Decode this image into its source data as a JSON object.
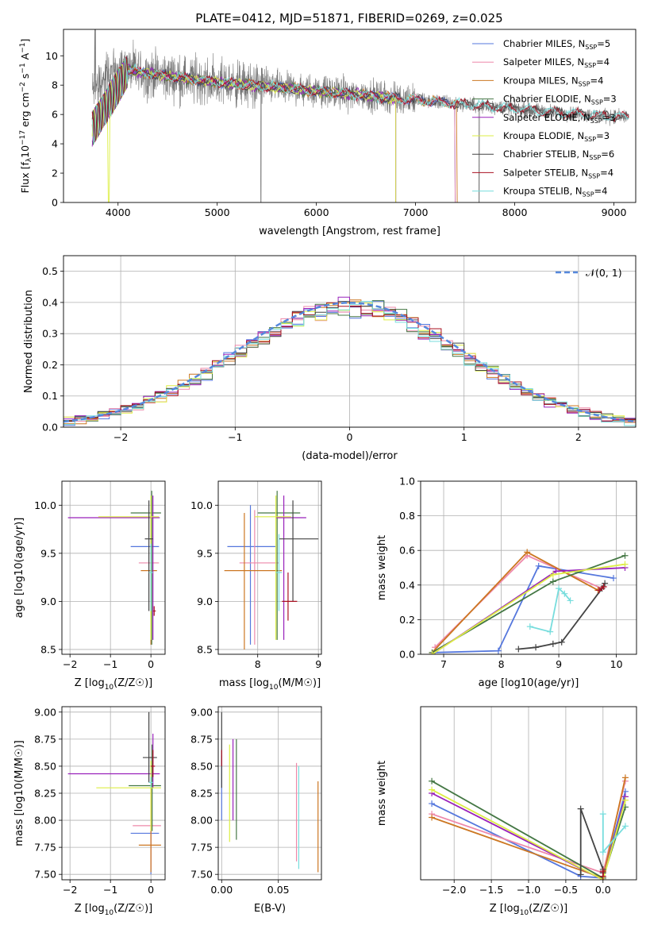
{
  "figure_title": "PLATE=0412, MJD=51871, FIBERID=0269, z=0.025",
  "colors": {
    "chabrier_miles": "#5577dd",
    "salpeter_miles": "#ee88aa",
    "kroupa_miles": "#cc7722",
    "chabrier_elodie": "#447744",
    "salpeter_elodie": "#9922bb",
    "kroupa_elodie": "#ddee44",
    "chabrier_stelib": "#444444",
    "salpeter_stelib": "#aa1122",
    "kroupa_stelib": "#77dddd",
    "data_spectrum": "#777777",
    "normal_curve": "#5588dd"
  },
  "chart_data": [
    {
      "id": "spectrum",
      "type": "line",
      "xlabel": "wavelength [Angstrom, rest frame]",
      "ylabel": "Flux [f_λ 10^-17 erg cm^-2 s^-1 A^-1]",
      "xlim": [
        3450,
        9220
      ],
      "ylim": [
        0,
        11.8
      ],
      "xticks": [
        4000,
        5000,
        6000,
        7000,
        8000,
        9000
      ],
      "yticks": [
        0,
        2,
        4,
        6,
        8,
        10
      ],
      "legend_position": "top-right",
      "legend": [
        {
          "main": "Chabrier MILES, N",
          "sub": "SSP",
          "tail": "=5",
          "color_key": "chabrier_miles"
        },
        {
          "main": "Salpeter MILES, N",
          "sub": "SSP",
          "tail": "=4",
          "color_key": "salpeter_miles"
        },
        {
          "main": "Kroupa MILES, N",
          "sub": "SSP",
          "tail": "=4",
          "color_key": "kroupa_miles"
        },
        {
          "main": "Chabrier ELODIE, N",
          "sub": "SSP",
          "tail": "=3",
          "color_key": "chabrier_elodie"
        },
        {
          "main": "Salpeter ELODIE, N",
          "sub": "SSP",
          "tail": "=3",
          "color_key": "salpeter_elodie"
        },
        {
          "main": "Kroupa ELODIE, N",
          "sub": "SSP",
          "tail": "=3",
          "color_key": "kroupa_elodie"
        },
        {
          "main": "Chabrier STELIB, N",
          "sub": "SSP",
          "tail": "=6",
          "color_key": "chabrier_stelib"
        },
        {
          "main": "Salpeter STELIB, N",
          "sub": "SSP",
          "tail": "=4",
          "color_key": "salpeter_stelib"
        },
        {
          "main": "Kroupa STELIB, N",
          "sub": "SSP",
          "tail": "=4",
          "color_key": "kroupa_stelib"
        }
      ],
      "continuum": [
        [
          3740,
          7.6
        ],
        [
          4000,
          9.2
        ],
        [
          4200,
          8.9
        ],
        [
          4500,
          8.6
        ],
        [
          5000,
          8.2
        ],
        [
          5500,
          7.9
        ],
        [
          6000,
          7.6
        ],
        [
          6500,
          7.3
        ],
        [
          7000,
          7.0
        ],
        [
          7500,
          6.7
        ],
        [
          8000,
          6.4
        ],
        [
          8500,
          6.1
        ],
        [
          9150,
          5.8
        ]
      ],
      "data_xrange": [
        3740,
        9150
      ]
    },
    {
      "id": "residual_hist",
      "type": "bar",
      "xlabel": "(data-model)/error",
      "ylabel": "Normed distribution",
      "xlim": [
        -2.5,
        2.5
      ],
      "ylim": [
        0,
        0.55
      ],
      "xticks": [
        -2,
        -1,
        0,
        1,
        2
      ],
      "yticks": [
        0.0,
        0.1,
        0.2,
        0.3,
        0.4,
        0.5
      ],
      "bin_width": 0.1,
      "bin_start": -2.5,
      "legend": "𝒩(0, 1)",
      "legend_position": "top-right",
      "grid": true
    },
    {
      "id": "age_vs_Z",
      "type": "scatter",
      "xlabel_main": "Z [log",
      "xlabel_sub": "10",
      "xlabel_tail": "(Z/Z☉)]",
      "ylabel": "age  [log10(age/yr)]",
      "xlim": [
        -2.2,
        0.35
      ],
      "ylim": [
        8.45,
        10.25
      ],
      "xticks": [
        -2,
        -1,
        0
      ],
      "yticks": [
        8.5,
        9.0,
        9.5,
        10.0
      ],
      "grid": true,
      "points": [
        {
          "c": "chabrier_miles",
          "x": 0.0,
          "y": 9.57,
          "xe": [
            -0.5,
            0.2
          ],
          "ye": [
            8.6,
            10.05
          ]
        },
        {
          "c": "salpeter_miles",
          "x": 0.0,
          "y": 9.4,
          "xe": [
            -0.3,
            0.2
          ],
          "ye": [
            8.6,
            9.95
          ]
        },
        {
          "c": "kroupa_miles",
          "x": 0.0,
          "y": 9.32,
          "xe": [
            -0.25,
            0.15
          ],
          "ye": [
            8.55,
            9.9
          ]
        },
        {
          "c": "chabrier_elodie",
          "x": 0.02,
          "y": 9.92,
          "xe": [
            -0.5,
            0.25
          ],
          "ye": [
            8.55,
            10.15
          ]
        },
        {
          "c": "salpeter_elodie",
          "x": 0.05,
          "y": 9.87,
          "xe": [
            -2.05,
            0.22
          ],
          "ye": [
            8.6,
            10.1
          ]
        },
        {
          "c": "kroupa_elodie",
          "x": 0.0,
          "y": 9.88,
          "xe": [
            -1.3,
            0.2
          ],
          "ye": [
            8.6,
            10.1
          ]
        },
        {
          "c": "chabrier_stelib",
          "x": -0.05,
          "y": 9.65,
          "xe": [
            -0.15,
            0.05
          ],
          "ye": [
            8.9,
            10.05
          ]
        },
        {
          "c": "salpeter_stelib",
          "x": 0.08,
          "y": 8.9,
          "xe": [
            0.05,
            0.12
          ],
          "ye": [
            8.85,
            8.95
          ]
        },
        {
          "c": "kroupa_stelib",
          "x": 0.0,
          "y": 9.3,
          "xe": [
            -0.05,
            0.05
          ],
          "ye": [
            8.9,
            9.6
          ]
        }
      ]
    },
    {
      "id": "age_vs_mass",
      "type": "scatter",
      "xlabel_main": "mass [log",
      "xlabel_sub": "10",
      "xlabel_tail": "(M/M☉)]",
      "xlim": [
        7.35,
        9.05
      ],
      "ylim": [
        8.45,
        10.25
      ],
      "xticks": [
        8,
        9
      ],
      "yticks": [
        8.5,
        9.0,
        9.5,
        10.0
      ],
      "grid": true,
      "points": [
        {
          "c": "chabrier_miles",
          "x": 7.88,
          "y": 9.57,
          "xe": [
            7.5,
            8.3
          ],
          "ye": [
            8.55,
            10.0
          ]
        },
        {
          "c": "salpeter_miles",
          "x": 7.95,
          "y": 9.4,
          "xe": [
            7.7,
            8.35
          ],
          "ye": [
            8.55,
            9.95
          ]
        },
        {
          "c": "kroupa_miles",
          "x": 7.78,
          "y": 9.32,
          "xe": [
            7.45,
            8.4
          ],
          "ye": [
            8.5,
            9.92
          ]
        },
        {
          "c": "chabrier_elodie",
          "x": 8.32,
          "y": 9.92,
          "xe": [
            8.0,
            8.7
          ],
          "ye": [
            8.6,
            10.15
          ]
        },
        {
          "c": "salpeter_elodie",
          "x": 8.43,
          "y": 9.87,
          "xe": [
            8.3,
            8.8
          ],
          "ye": [
            8.6,
            10.1
          ]
        },
        {
          "c": "kroupa_elodie",
          "x": 8.3,
          "y": 9.88,
          "xe": [
            7.95,
            8.55
          ],
          "ye": [
            8.6,
            10.1
          ]
        },
        {
          "c": "chabrier_stelib",
          "x": 8.58,
          "y": 9.65,
          "xe": [
            8.35,
            9.0
          ],
          "ye": [
            9.0,
            10.05
          ]
        },
        {
          "c": "salpeter_stelib",
          "x": 8.5,
          "y": 9.0,
          "xe": [
            8.4,
            8.65
          ],
          "ye": [
            8.8,
            9.3
          ]
        },
        {
          "c": "kroupa_stelib",
          "x": 8.35,
          "y": 9.3,
          "xe": [
            8.3,
            8.4
          ],
          "ye": [
            8.9,
            9.7
          ]
        }
      ]
    },
    {
      "id": "mass_weight_vs_age",
      "type": "line",
      "xlabel": "age  [log10(age/yr)]",
      "ylabel": "mass weight",
      "xlim": [
        6.6,
        10.35
      ],
      "ylim": [
        0,
        1.0
      ],
      "xticks": [
        7,
        8,
        9,
        10
      ],
      "yticks": [
        0.0,
        0.2,
        0.4,
        0.6,
        0.8,
        1.0
      ],
      "grid": true,
      "series": [
        {
          "c": "chabrier_miles",
          "x": [
            6.85,
            7.95,
            8.65,
            9.95
          ],
          "y": [
            0.01,
            0.02,
            0.51,
            0.44
          ]
        },
        {
          "c": "salpeter_miles",
          "x": [
            6.85,
            8.45,
            9.75
          ],
          "y": [
            0.04,
            0.57,
            0.38
          ]
        },
        {
          "c": "kroupa_miles",
          "x": [
            6.8,
            8.45,
            9.68
          ],
          "y": [
            0.01,
            0.59,
            0.37
          ]
        },
        {
          "c": "chabrier_elodie",
          "x": [
            6.8,
            8.9,
            10.15
          ],
          "y": [
            0.01,
            0.42,
            0.57
          ]
        },
        {
          "c": "salpeter_elodie",
          "x": [
            6.8,
            8.95,
            10.15
          ],
          "y": [
            0.0,
            0.48,
            0.5
          ]
        },
        {
          "c": "kroupa_elodie",
          "x": [
            6.8,
            8.9,
            10.15
          ],
          "y": [
            0.0,
            0.46,
            0.52
          ]
        },
        {
          "c": "chabrier_stelib",
          "x": [
            8.3,
            8.6,
            8.9,
            9.05,
            9.75,
            9.8
          ],
          "y": [
            0.03,
            0.04,
            0.06,
            0.07,
            0.38,
            0.41
          ]
        },
        {
          "c": "salpeter_stelib",
          "x": [
            9.7,
            9.78
          ],
          "y": [
            0.37,
            0.39
          ]
        },
        {
          "c": "kroupa_stelib",
          "x": [
            8.5,
            8.85,
            9.0,
            9.1,
            9.2
          ],
          "y": [
            0.16,
            0.13,
            0.38,
            0.35,
            0.31
          ]
        }
      ]
    },
    {
      "id": "mass_vs_Z",
      "type": "scatter",
      "xlabel_main": "Z [log",
      "xlabel_sub": "10",
      "xlabel_tail": "(Z/Z☉)]",
      "ylabel": "mass [log10(M/M☉)]",
      "xlim": [
        -2.2,
        0.35
      ],
      "ylim": [
        7.45,
        9.05
      ],
      "xticks": [
        -2,
        -1,
        0
      ],
      "yticks": [
        7.5,
        7.75,
        8.0,
        8.25,
        8.5,
        8.75,
        9.0
      ],
      "grid": true,
      "points": [
        {
          "c": "chabrier_miles",
          "x": 0.0,
          "y": 7.88,
          "xe": [
            -0.5,
            0.2
          ],
          "ye": [
            7.5,
            8.3
          ]
        },
        {
          "c": "salpeter_miles",
          "x": 0.0,
          "y": 7.95,
          "xe": [
            -0.45,
            0.25
          ],
          "ye": [
            7.55,
            8.35
          ]
        },
        {
          "c": "kroupa_miles",
          "x": 0.0,
          "y": 7.77,
          "xe": [
            -0.3,
            0.25
          ],
          "ye": [
            7.52,
            8.4
          ]
        },
        {
          "c": "chabrier_elodie",
          "x": 0.03,
          "y": 8.32,
          "xe": [
            -0.55,
            0.25
          ],
          "ye": [
            7.9,
            8.7
          ]
        },
        {
          "c": "salpeter_elodie",
          "x": 0.05,
          "y": 8.43,
          "xe": [
            -2.05,
            0.22
          ],
          "ye": [
            8.3,
            8.8
          ]
        },
        {
          "c": "kroupa_elodie",
          "x": 0.0,
          "y": 8.3,
          "xe": [
            -1.35,
            0.25
          ],
          "ye": [
            7.9,
            8.55
          ]
        },
        {
          "c": "chabrier_stelib",
          "x": -0.05,
          "y": 8.58,
          "xe": [
            -0.2,
            0.15
          ],
          "ye": [
            8.35,
            9.0
          ]
        },
        {
          "c": "salpeter_stelib",
          "x": 0.05,
          "y": 8.5,
          "xe": [
            0.0,
            0.1
          ],
          "ye": [
            8.4,
            8.65
          ]
        },
        {
          "c": "kroupa_stelib",
          "x": 0.0,
          "y": 8.35,
          "xe": [
            -0.05,
            0.05
          ],
          "ye": [
            8.3,
            8.4
          ]
        }
      ]
    },
    {
      "id": "mass_vs_ebv",
      "type": "scatter",
      "xlabel": "E(B-V)",
      "xlim": [
        -0.003,
        0.088
      ],
      "ylim": [
        7.45,
        9.05
      ],
      "xticks": [
        0.0,
        0.05
      ],
      "yticks": [
        7.5,
        7.75,
        8.0,
        8.25,
        8.5,
        8.75,
        9.0
      ],
      "grid": true,
      "points": [
        {
          "c": "chabrier_miles",
          "x": 0.0,
          "y": 8.3,
          "ye": [
            8.0,
            8.6
          ]
        },
        {
          "c": "salpeter_miles",
          "x": 0.066,
          "y": 8.0,
          "ye": [
            7.62,
            8.53
          ]
        },
        {
          "c": "kroupa_miles",
          "x": 0.085,
          "y": 7.9,
          "ye": [
            7.52,
            8.36
          ]
        },
        {
          "c": "chabrier_elodie",
          "x": 0.013,
          "y": 8.3,
          "ye": [
            7.82,
            8.75
          ]
        },
        {
          "c": "salpeter_elodie",
          "x": 0.01,
          "y": 8.4,
          "ye": [
            8.0,
            8.75
          ]
        },
        {
          "c": "kroupa_elodie",
          "x": 0.007,
          "y": 8.3,
          "ye": [
            7.8,
            8.7
          ]
        },
        {
          "c": "chabrier_stelib",
          "x": 0.0,
          "y": 8.6,
          "ye": [
            8.3,
            9.0
          ]
        },
        {
          "c": "salpeter_stelib",
          "x": 0.0,
          "y": 8.6,
          "ye": [
            8.5,
            8.65
          ]
        },
        {
          "c": "kroupa_stelib",
          "x": 0.068,
          "y": 8.0,
          "ye": [
            7.55,
            8.5
          ]
        }
      ]
    },
    {
      "id": "mass_weight_vs_Z",
      "type": "line",
      "xlabel_main": "Z [log",
      "xlabel_sub": "10",
      "xlabel_tail": "(Z/Z☉)]",
      "ylabel": "mass weight",
      "xlim": [
        -2.45,
        0.45
      ],
      "ylim": [
        0,
        1.0
      ],
      "xticks": [
        -2.0,
        -1.5,
        -1.0,
        -0.5,
        0.0
      ],
      "grid": true,
      "series": [
        {
          "c": "chabrier_miles",
          "x": [
            -2.3,
            -0.3,
            0.0,
            0.3
          ],
          "y": [
            0.44,
            0.02,
            0.01,
            0.51
          ]
        },
        {
          "c": "salpeter_miles",
          "x": [
            -2.3,
            0.0,
            0.3
          ],
          "y": [
            0.38,
            0.04,
            0.57
          ]
        },
        {
          "c": "kroupa_miles",
          "x": [
            -2.3,
            0.0,
            0.3
          ],
          "y": [
            0.36,
            0.01,
            0.59
          ]
        },
        {
          "c": "chabrier_elodie",
          "x": [
            -2.3,
            0.0,
            0.3
          ],
          "y": [
            0.57,
            0.01,
            0.42
          ]
        },
        {
          "c": "salpeter_elodie",
          "x": [
            -2.3,
            0.0,
            0.3
          ],
          "y": [
            0.5,
            0.0,
            0.48
          ]
        },
        {
          "c": "kroupa_elodie",
          "x": [
            -2.3,
            0.0,
            0.3
          ],
          "y": [
            0.52,
            0.0,
            0.46
          ]
        },
        {
          "c": "chabrier_stelib",
          "x": [
            -0.3,
            -0.3,
            0.0,
            0.0
          ],
          "y": [
            0.03,
            0.41,
            0.06,
            0.04
          ]
        },
        {
          "c": "salpeter_stelib",
          "x": [
            0.0,
            0.0
          ],
          "y": [
            0.02,
            0.05
          ]
        },
        {
          "c": "kroupa_stelib",
          "x": [
            0.0,
            0.0,
            0.3
          ],
          "y": [
            0.38,
            0.16,
            0.31
          ]
        }
      ]
    }
  ]
}
